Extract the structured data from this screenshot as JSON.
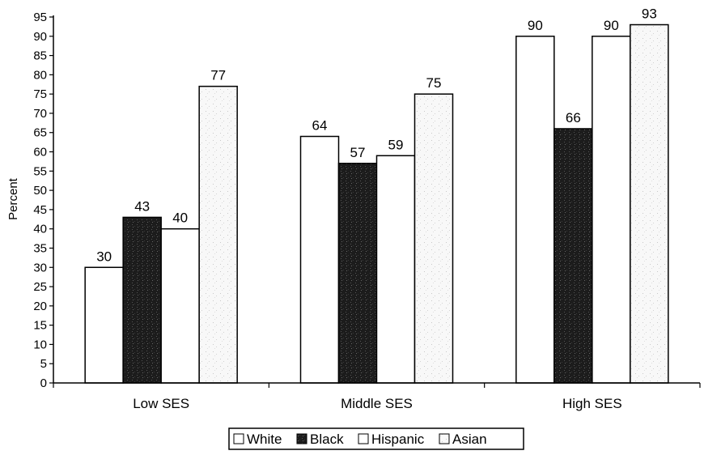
{
  "chart_data": {
    "type": "bar",
    "title": "",
    "xlabel": "",
    "ylabel": "Percent",
    "ylim": [
      0,
      95
    ],
    "ytick_step": 5,
    "categories": [
      "Low SES",
      "Middle SES",
      "High SES"
    ],
    "series": [
      {
        "name": "White",
        "values": [
          30,
          64,
          90
        ],
        "fill": "white"
      },
      {
        "name": "Black",
        "values": [
          43,
          57,
          66
        ],
        "fill": "dark-speckle"
      },
      {
        "name": "Hispanic",
        "values": [
          40,
          59,
          90
        ],
        "fill": "white"
      },
      {
        "name": "Asian",
        "values": [
          77,
          75,
          93
        ],
        "fill": "light-speckle"
      }
    ],
    "data_labels": true,
    "legend": {
      "position": "bottom",
      "boxed": true
    },
    "grid": false
  },
  "colors": {
    "bar_stroke": "#000000",
    "white_fill": "#ffffff",
    "black_fill": "#1c1c1c",
    "asian_fill": "#f8f8f8",
    "speckle_light": "#c8c8c8",
    "speckle_dark": "#555555"
  }
}
